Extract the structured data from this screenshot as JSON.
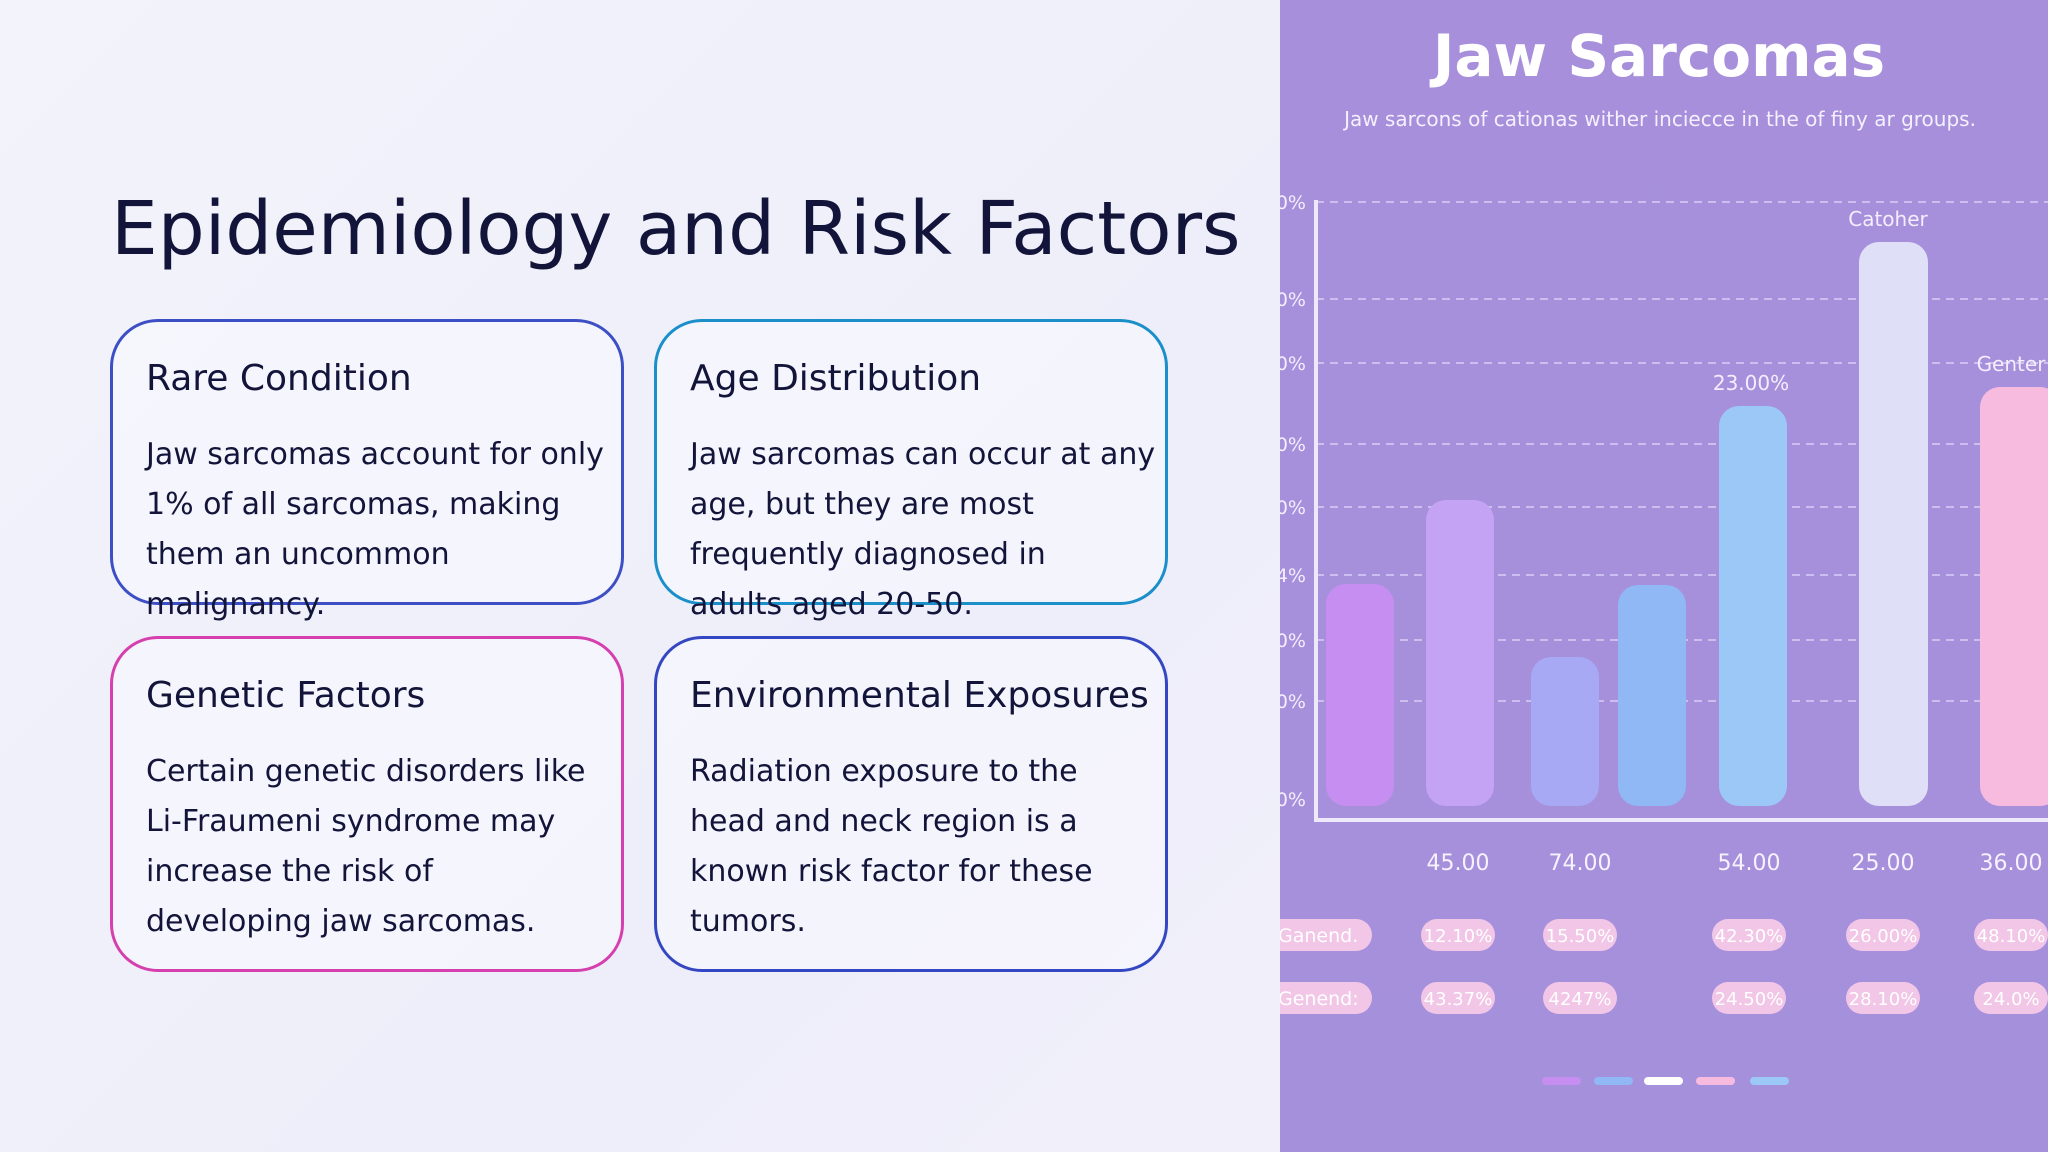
{
  "slide": {
    "title": "Epidemiology and Risk Factors",
    "cards": [
      {
        "title": "Rare Condition",
        "lines": [
          "Jaw sarcomas account for only",
          "1% of all sarcomas, making",
          "them an uncommon",
          "malignancy."
        ]
      },
      {
        "title": "Age Distribution",
        "lines": [
          "Jaw sarcomas can occur at any",
          "age, but they are most",
          "frequently diagnosed in",
          "adults aged 20-50."
        ]
      },
      {
        "title": "Genetic Factors",
        "lines": [
          "Certain genetic disorders like",
          "Li-Fraumeni syndrome may",
          "increase the risk of",
          "developing jaw sarcomas."
        ]
      },
      {
        "title": "Environmental Exposures",
        "lines": [
          "Radiation exposure to the",
          "head and neck region is a",
          "known risk factor for these",
          "tumors."
        ]
      }
    ]
  },
  "image": {
    "title": "Jaw Sarcomas",
    "subtitle": "Jaw sarcons of cationas wither inciecce in the of finy ar groups.",
    "axis_labels": [
      "0%",
      "0%",
      "0%",
      "0%",
      "0%",
      "4%",
      "0%",
      "0%",
      "0%"
    ],
    "bar_labels": [
      "23.00%",
      "Catoher",
      "Genter"
    ],
    "x_labels": [
      "45.00",
      "74.00",
      "54.00",
      "25.00",
      "36.00"
    ],
    "row_labels": [
      "Ganend.",
      "Genend:"
    ],
    "pills": [
      [
        "12.10%",
        "15.50%",
        "42.30%",
        "26.00%",
        "48.10%"
      ],
      [
        "43.37%",
        "4247%",
        "24.50%",
        "28.10%",
        "24.0%"
      ]
    ]
  }
}
